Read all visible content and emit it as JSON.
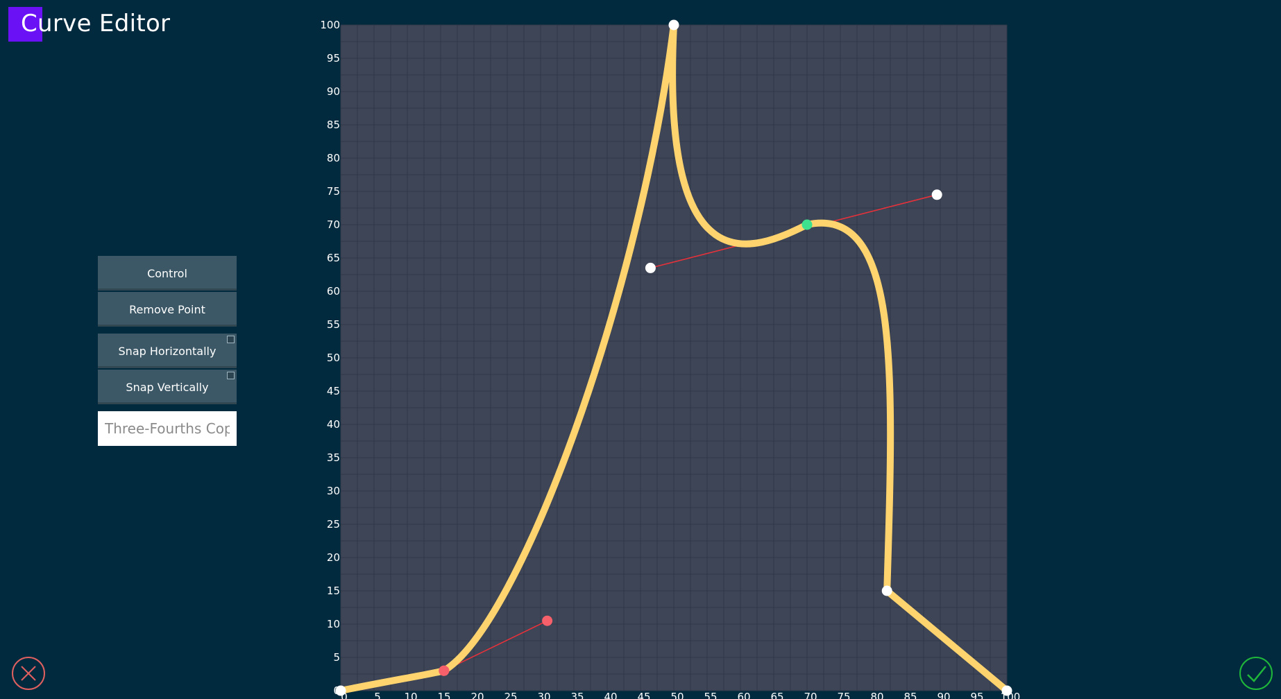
{
  "app": {
    "title": "Curve Editor"
  },
  "toolbar": {
    "control_label": "Control",
    "remove_point_label": "Remove Point",
    "snap_horizontal_label": "Snap Horizontally",
    "snap_vertical_label": "Snap Vertically",
    "name_placeholder": "Three-Fourths Copy"
  },
  "colors": {
    "background": "#022a3e",
    "plot_bg": "#3d4556",
    "curve": "#ffd46e",
    "tangent": "#e8313a",
    "selected_point": "#3ee28e",
    "handle_active": "#f5606a",
    "cancel": "#e06060",
    "confirm": "#1fb83a",
    "title_accent": "#6a12f5"
  },
  "icons": {
    "cancel": "x-circle-icon",
    "confirm": "check-circle-icon"
  },
  "chart_data": {
    "type": "line",
    "x_ticks": [
      "0",
      "5",
      "10",
      "15",
      "20",
      "25",
      "30",
      "35",
      "40",
      "45",
      "50",
      "55",
      "60",
      "65",
      "70",
      "75",
      "80",
      "85",
      "90",
      "95",
      "100"
    ],
    "y_ticks": [
      "0",
      "5",
      "10",
      "15",
      "20",
      "25",
      "30",
      "35",
      "40",
      "45",
      "50",
      "55",
      "60",
      "65",
      "70",
      "75",
      "80",
      "85",
      "90",
      "95",
      "100"
    ],
    "xlim": [
      0,
      100
    ],
    "ylim": [
      0,
      100
    ],
    "grid": true,
    "curve_segments": [
      {
        "from": [
          0,
          0
        ],
        "c1": [
          7.5,
          1.5
        ],
        "c2": [
          13.5,
          2.5
        ],
        "to": [
          15.5,
          3
        ]
      },
      {
        "from": [
          15.5,
          3
        ],
        "c1": [
          27,
          10
        ],
        "c2": [
          45,
          60
        ],
        "to": [
          50,
          100
        ]
      },
      {
        "from": [
          50,
          100
        ],
        "c1": [
          48,
          60
        ],
        "c2": [
          62,
          66
        ],
        "to": [
          70,
          70
        ]
      },
      {
        "from": [
          70,
          70
        ],
        "c1": [
          84,
          73
        ],
        "c2": [
          83,
          48
        ],
        "to": [
          82,
          15
        ]
      },
      {
        "from": [
          82,
          15
        ],
        "to": [
          100,
          0
        ]
      }
    ],
    "points": [
      {
        "x": 0,
        "y": 0,
        "state": "normal"
      },
      {
        "x": 15.5,
        "y": 3,
        "state": "active"
      },
      {
        "x": 50,
        "y": 100,
        "state": "normal"
      },
      {
        "x": 70,
        "y": 70,
        "state": "selected"
      },
      {
        "x": 82,
        "y": 15,
        "state": "normal"
      },
      {
        "x": 100,
        "y": 0,
        "state": "normal"
      }
    ],
    "tangents": [
      {
        "a": [
          15.5,
          3
        ],
        "b": [
          31,
          10.5
        ],
        "handle_state": "active"
      },
      {
        "a": [
          46.5,
          63.5
        ],
        "b": [
          89.5,
          74.5
        ],
        "handle_state": "normal"
      }
    ]
  }
}
